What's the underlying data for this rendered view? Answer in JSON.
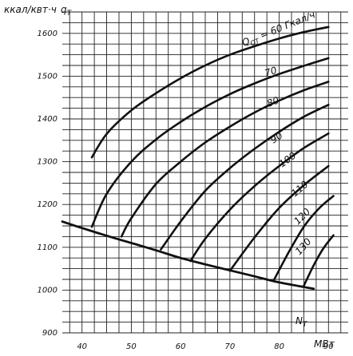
{
  "chart_data": {
    "type": "line",
    "title": "",
    "xlabel": "N",
    "xlabel_sub": "T",
    "xunit": "МВт",
    "ylabel": "q",
    "ylabel_sub": "T",
    "yunit": "ккал/квт·ч",
    "xlim": [
      36,
      94
    ],
    "ylim": [
      900,
      1650
    ],
    "x_ticks": [
      40,
      50,
      60,
      70,
      80,
      90
    ],
    "y_ticks": [
      900,
      1000,
      1100,
      1200,
      1300,
      1400,
      1500,
      1600
    ],
    "grid": true,
    "series": [
      {
        "name": "Q_OT = 60 Гкал/ч",
        "label_text": "Q",
        "label_sub": "OT",
        "label_rest": " = 60 Гкал/ч",
        "x": [
          42,
          45,
          50,
          55,
          60,
          65,
          70,
          75,
          80,
          85,
          90
        ],
        "y": [
          1310,
          1365,
          1420,
          1460,
          1495,
          1525,
          1550,
          1570,
          1588,
          1603,
          1615
        ]
      },
      {
        "name": "70",
        "label_text": "70",
        "x": [
          42,
          45,
          50,
          55,
          60,
          65,
          70,
          75,
          80,
          85,
          90
        ],
        "y": [
          1148,
          1225,
          1300,
          1352,
          1393,
          1428,
          1458,
          1483,
          1505,
          1524,
          1542
        ]
      },
      {
        "name": "80",
        "label_text": "80",
        "x": [
          48,
          50,
          55,
          60,
          65,
          70,
          75,
          80,
          85,
          90
        ],
        "y": [
          1125,
          1168,
          1248,
          1300,
          1345,
          1382,
          1415,
          1443,
          1467,
          1487
        ]
      },
      {
        "name": "90",
        "label_text": "90",
        "x": [
          56,
          60,
          65,
          70,
          75,
          80,
          85,
          90
        ],
        "y": [
          1095,
          1160,
          1232,
          1285,
          1330,
          1370,
          1405,
          1433
        ]
      },
      {
        "name": "100",
        "label_text": "100",
        "x": [
          62,
          65,
          70,
          75,
          80,
          85,
          90
        ],
        "y": [
          1068,
          1120,
          1188,
          1243,
          1290,
          1332,
          1366
        ]
      },
      {
        "name": "110",
        "label_text": "110",
        "x": [
          70,
          75,
          80,
          85,
          90
        ],
        "y": [
          1045,
          1123,
          1192,
          1245,
          1290
        ]
      },
      {
        "name": "120",
        "label_text": "120",
        "x": [
          79,
          82,
          85,
          88,
          91
        ],
        "y": [
          1025,
          1090,
          1148,
          1190,
          1220
        ]
      },
      {
        "name": "130",
        "label_text": "130",
        "x": [
          85,
          87,
          89,
          91
        ],
        "y": [
          1010,
          1058,
          1098,
          1128
        ]
      }
    ],
    "envelope": {
      "x": [
        36,
        40,
        45,
        50,
        55,
        60,
        65,
        70,
        75,
        80,
        87
      ],
      "y": [
        1160,
        1145,
        1127,
        1110,
        1093,
        1075,
        1060,
        1046,
        1032,
        1018,
        1003
      ]
    }
  }
}
